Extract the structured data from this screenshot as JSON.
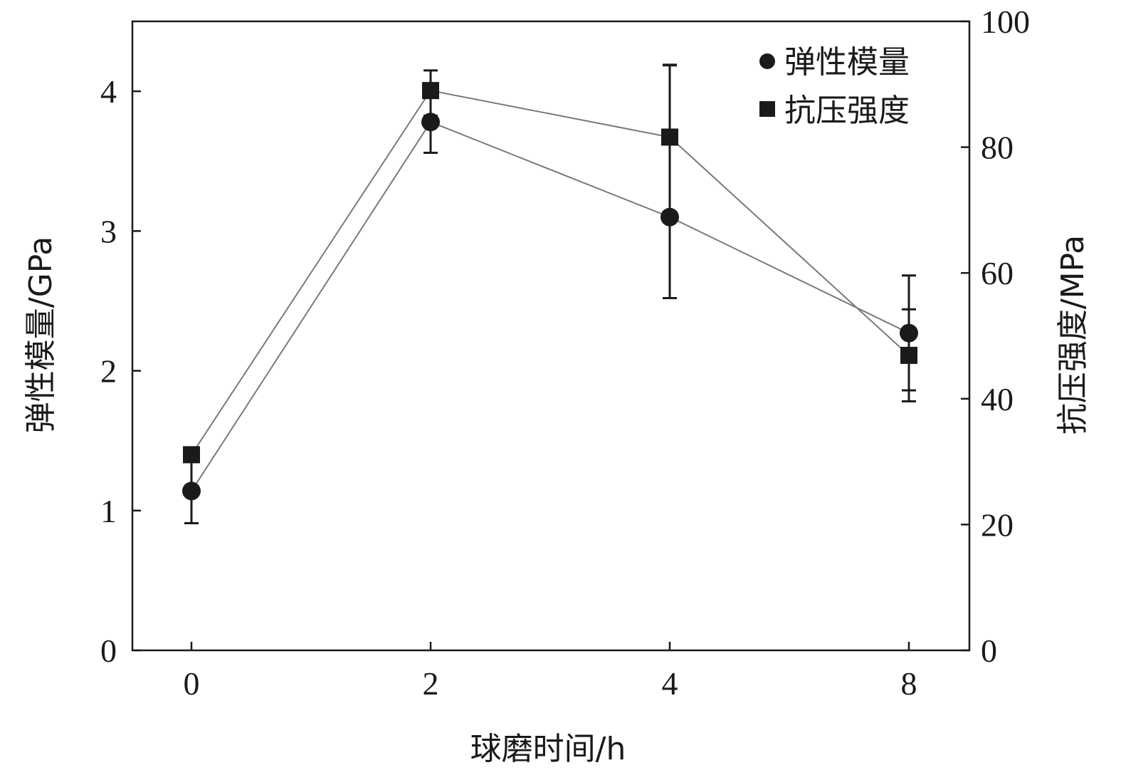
{
  "chart_data": {
    "type": "line",
    "x_categories": [
      "0",
      "2",
      "4",
      "8"
    ],
    "x_ticks": [
      "0",
      "2",
      "4",
      "8"
    ],
    "xlabel": "球磨时间/h",
    "ylabel_left": "弹性模量/GPa",
    "ylabel_right": "抗压强度/MPa",
    "ylim_left": [
      0,
      4.5
    ],
    "ylim_right": [
      0,
      100
    ],
    "yticks_left": [
      "0",
      "1",
      "2",
      "3",
      "4"
    ],
    "yticks_right": [
      "0",
      "20",
      "40",
      "60",
      "80",
      "100"
    ],
    "grid": false,
    "legend_position": "top-right",
    "series": [
      {
        "name": "弹性模量",
        "axis": "left",
        "marker": "circle",
        "values": [
          1.14,
          3.78,
          3.1,
          2.27
        ],
        "error_low": [
          0.91,
          3.56,
          2.52,
          1.86
        ],
        "error_high": [
          1.37,
          3.98,
          4.19,
          2.44
        ]
      },
      {
        "name": "抗压强度",
        "axis": "right",
        "marker": "square",
        "values": [
          31.1,
          89.0,
          81.6,
          46.9
        ],
        "error_low": [
          31.1,
          85.0,
          56.0,
          39.6
        ],
        "error_high": [
          31.1,
          92.2,
          93.0,
          59.6
        ]
      }
    ]
  },
  "colors": {
    "axis": "#1a1a1a",
    "line": "#7a7a7a",
    "marker": "#1a1a1a"
  }
}
